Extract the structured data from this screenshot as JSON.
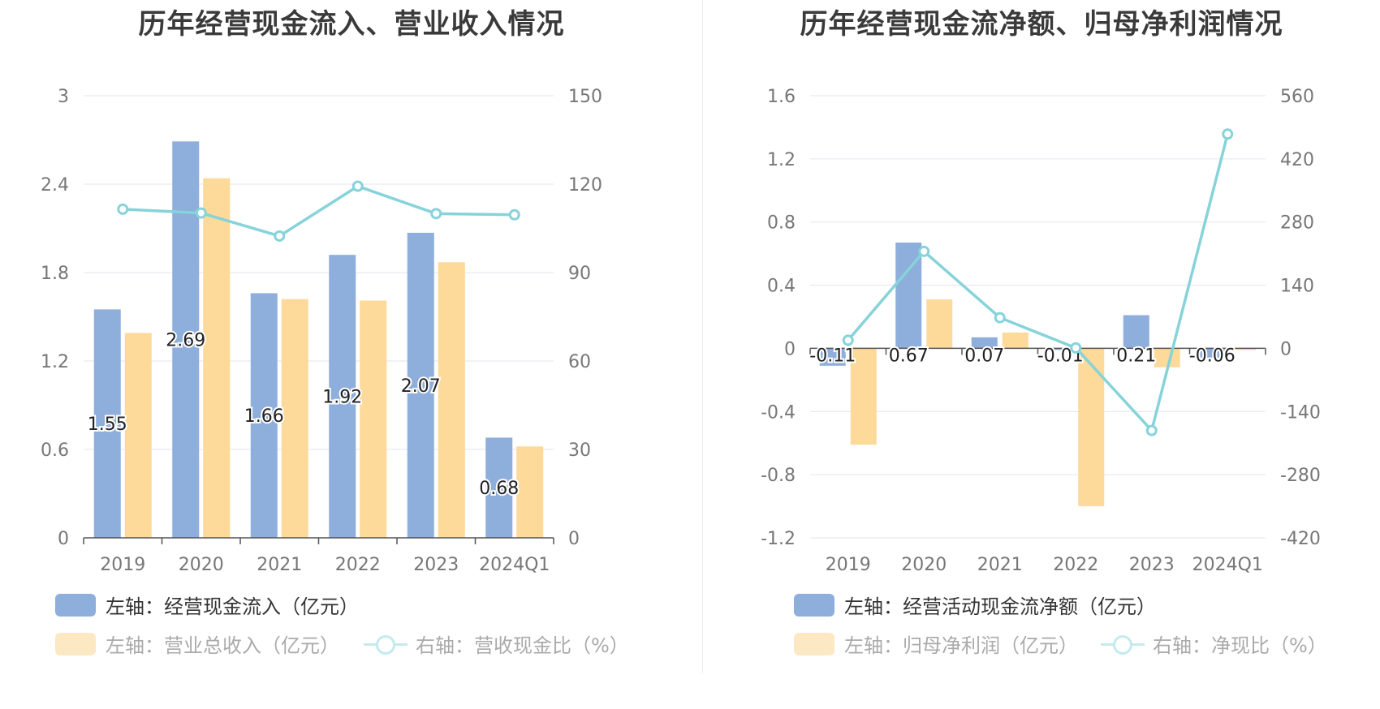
{
  "chart_data": [
    {
      "type": "bar",
      "title": "历年经营现金流入、营业收入情况",
      "categories": [
        "2019",
        "2020",
        "2021",
        "2022",
        "2023",
        "2024Q1"
      ],
      "left_axis": {
        "min": 0,
        "max": 3,
        "ticks": [
          "0",
          "0.6",
          "1.2",
          "1.8",
          "2.4",
          "3"
        ]
      },
      "right_axis": {
        "min": 0,
        "max": 150,
        "ticks": [
          "0",
          "30",
          "60",
          "90",
          "120",
          "150"
        ]
      },
      "series": [
        {
          "name": "左轴：经营现金流入（亿元）",
          "kind": "bar",
          "axis": "left",
          "color": "#8eaedc",
          "values": [
            1.55,
            2.69,
            1.66,
            1.92,
            2.07,
            0.68
          ],
          "labels": [
            "1.55",
            "2.69",
            "1.66",
            "1.92",
            "2.07",
            "0.68"
          ]
        },
        {
          "name": "左轴：营业总收入（亿元）",
          "kind": "bar",
          "axis": "left",
          "color": "#fdd99a",
          "values": [
            1.39,
            2.44,
            1.62,
            1.61,
            1.87,
            0.62
          ]
        },
        {
          "name": "右轴：营收现金比（%）",
          "kind": "line",
          "axis": "right",
          "color": "#86d3d9",
          "values": [
            111.5,
            110.2,
            102.4,
            119.3,
            110.0,
            109.6
          ]
        }
      ],
      "grid": true,
      "legend": "bottom"
    },
    {
      "type": "bar",
      "title": "历年经营现金流净额、归母净利润情况",
      "categories": [
        "2019",
        "2020",
        "2021",
        "2022",
        "2023",
        "2024Q1"
      ],
      "left_axis": {
        "min": -1.2,
        "max": 1.6,
        "ticks": [
          "-1.2",
          "-0.8",
          "-0.4",
          "0",
          "0.4",
          "0.8",
          "1.2",
          "1.6"
        ]
      },
      "right_axis": {
        "min": -420,
        "max": 560,
        "ticks": [
          "-420",
          "-280",
          "-140",
          "0",
          "140",
          "280",
          "420",
          "560"
        ]
      },
      "series": [
        {
          "name": "左轴：经营活动现金流净额（亿元）",
          "kind": "bar",
          "axis": "left",
          "color": "#8eaedc",
          "values": [
            -0.11,
            0.67,
            0.07,
            -0.01,
            0.21,
            -0.06
          ],
          "labels": [
            "-0.11",
            "0.67",
            "0.07",
            "-0.01",
            "0.21",
            "-0.06"
          ]
        },
        {
          "name": "左轴：归母净利润（亿元）",
          "kind": "bar",
          "axis": "left",
          "color": "#fdd99a",
          "values": [
            -0.61,
            0.31,
            0.1,
            -1.0,
            -0.12,
            -0.01
          ]
        },
        {
          "name": "右轴：净现比（%）",
          "kind": "line",
          "axis": "right",
          "color": "#86d3d9",
          "values": [
            18,
            215,
            68,
            1,
            -182,
            475
          ]
        }
      ],
      "grid": true,
      "legend": "bottom"
    }
  ]
}
